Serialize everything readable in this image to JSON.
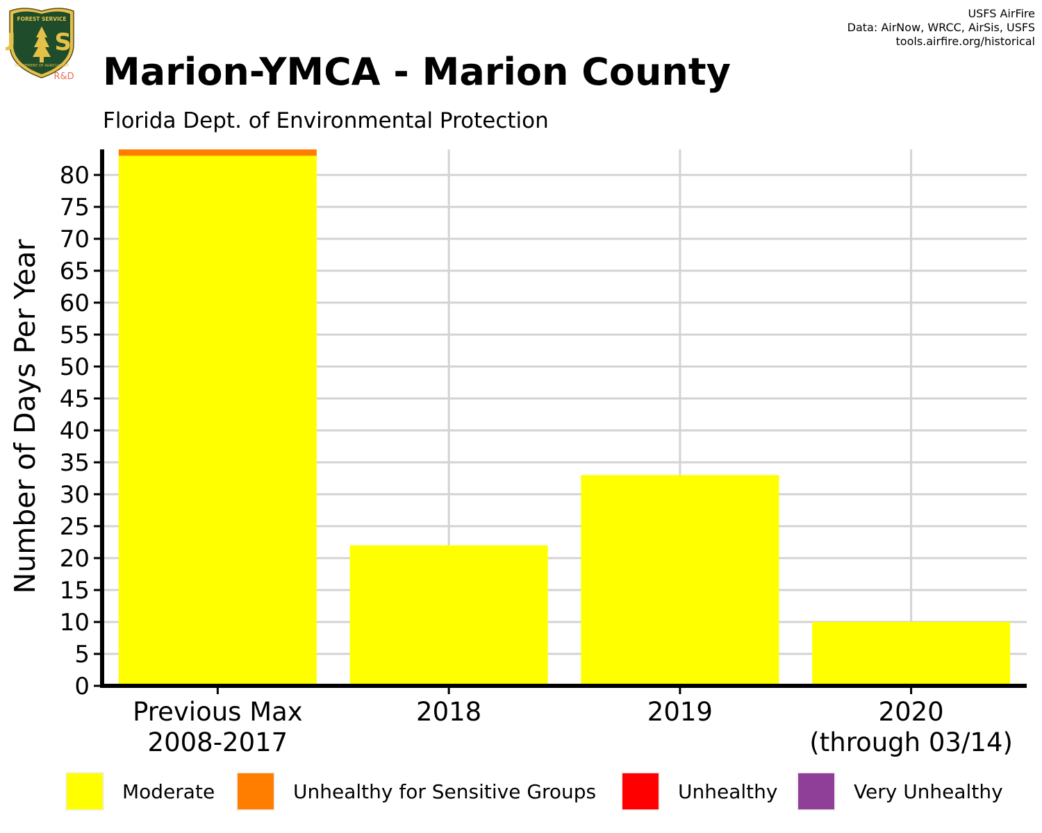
{
  "logo": {
    "name": "usfs-shield-logo",
    "shield_text_top": "FOREST SERVICE",
    "shield_letters": "U S",
    "shield_text_bottom": "DEPARTMENT OF AGRICULTURE",
    "tag": "R&D",
    "colors": {
      "shield": "#1f4d2b",
      "gold": "#e6c14a",
      "tag": "#e8705a"
    }
  },
  "credit": {
    "line1": "USFS AirFire",
    "line2": "Data: AirNow, WRCC, AirSis, USFS",
    "line3": "tools.airfire.org/historical"
  },
  "chart_data": {
    "type": "bar",
    "stacked": true,
    "title": "Marion-YMCA - Marion County",
    "subtitle": "Florida Dept. of Environmental Protection",
    "ylabel": "Number of Days Per Year",
    "xlabel": "",
    "ylim": [
      0,
      84
    ],
    "yticks": [
      0,
      5,
      10,
      15,
      20,
      25,
      30,
      35,
      40,
      45,
      50,
      55,
      60,
      65,
      70,
      75,
      80
    ],
    "grid": true,
    "legend_position": "bottom",
    "categories": [
      [
        "Previous Max",
        "2008-2017"
      ],
      [
        "2018"
      ],
      [
        "2019"
      ],
      [
        "2020",
        "(through 03/14)"
      ]
    ],
    "series": [
      {
        "name": "Moderate",
        "color": "#ffff00",
        "values": [
          83,
          22,
          33,
          10
        ]
      },
      {
        "name": "Unhealthy for Sensitive Groups",
        "color": "#ff7e00",
        "values": [
          1,
          0,
          0,
          0
        ]
      },
      {
        "name": "Unhealthy",
        "color": "#ff0000",
        "values": [
          0,
          0,
          0,
          0
        ]
      },
      {
        "name": "Very Unhealthy",
        "color": "#8f3f97",
        "values": [
          0,
          0,
          0,
          0
        ]
      }
    ],
    "colors": {
      "grid": "#d3d3d3",
      "axis": "#000000"
    }
  }
}
